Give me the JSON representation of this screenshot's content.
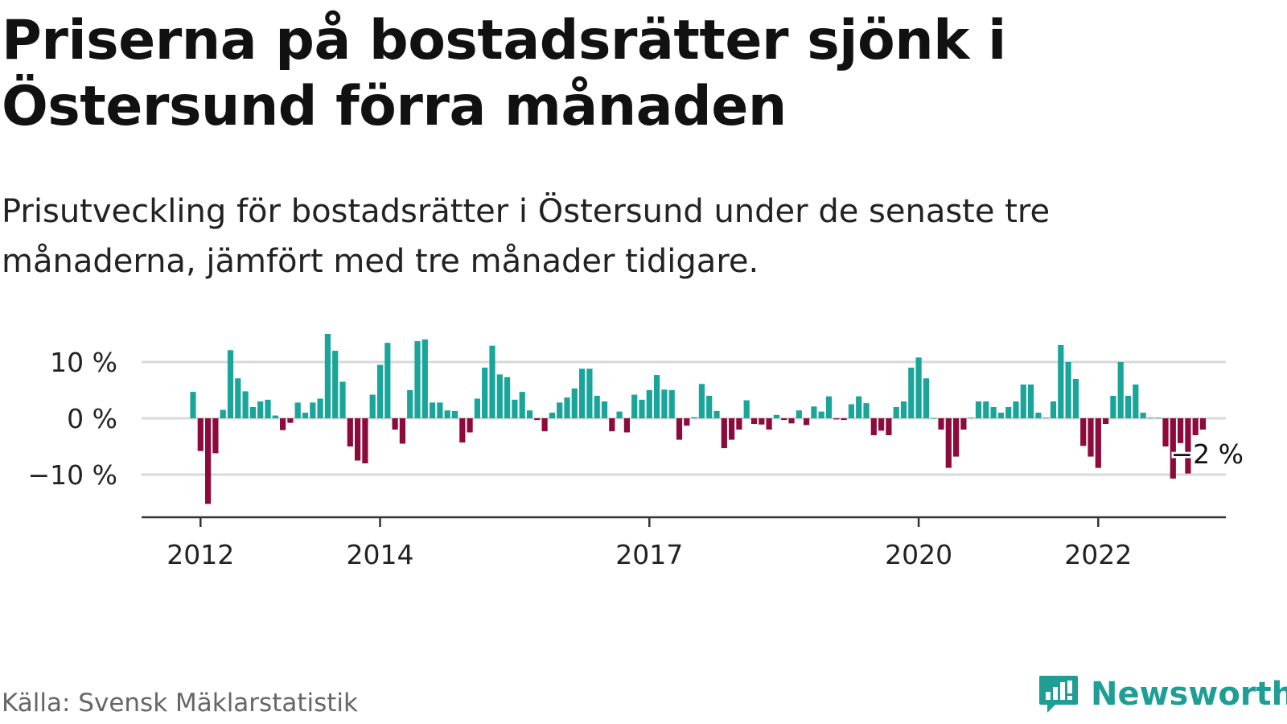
{
  "title": "Priserna på bostadsrätter sjönk i Östersund förra månaden",
  "subtitle": "Prisutveckling för bostadsrätter i Östersund under de senaste tre månaderna, jämfört med tre månader tidigare.",
  "source": "Källa: Svensk Mäklarstatistik",
  "brand": "Newsworthy",
  "colors": {
    "positive": "#1aa59a",
    "negative": "#8d0a3d",
    "grid": "#d9d9d9",
    "axis": "#333333",
    "brand": "#1e9e95"
  },
  "chart_data": {
    "type": "bar",
    "y_unit": "%",
    "ylim": [
      -18,
      15.5
    ],
    "y_ticks": [
      {
        "value": 10,
        "label": "10 %"
      },
      {
        "value": 0,
        "label": "0 %"
      },
      {
        "value": -10,
        "label": "−10 %"
      }
    ],
    "x_ticks": [
      {
        "month": "2012-01",
        "label": "2012"
      },
      {
        "month": "2014-01",
        "label": "2014"
      },
      {
        "month": "2017-01",
        "label": "2017"
      },
      {
        "month": "2020-01",
        "label": "2020"
      },
      {
        "month": "2022-01",
        "label": "2022"
      }
    ],
    "start_month": "2011-12",
    "values": [
      4.7,
      -5.8,
      -15.2,
      -6.2,
      1.5,
      12.1,
      7.1,
      4.8,
      2.0,
      3.0,
      3.3,
      0.5,
      -2.1,
      -0.8,
      2.8,
      1.0,
      2.8,
      3.5,
      15.0,
      12.0,
      6.5,
      -5.0,
      -7.5,
      -8.0,
      4.2,
      9.5,
      13.4,
      -2.0,
      -4.5,
      5.0,
      13.7,
      14.0,
      2.8,
      2.8,
      1.4,
      1.3,
      -4.3,
      -2.5,
      3.5,
      9.0,
      12.9,
      7.8,
      7.3,
      3.3,
      4.7,
      1.4,
      -0.3,
      -2.3,
      1.0,
      2.8,
      3.7,
      5.3,
      8.8,
      8.8,
      4.0,
      3.0,
      -2.3,
      1.2,
      -2.5,
      4.2,
      3.3,
      5.0,
      7.7,
      5.1,
      5.0,
      -3.8,
      -1.3,
      0.2,
      6.1,
      4.0,
      1.3,
      -5.3,
      -3.8,
      -2.0,
      3.2,
      -1.0,
      -1.1,
      -2.0,
      0.6,
      -0.3,
      -0.9,
      1.4,
      -1.2,
      2.1,
      1.2,
      3.9,
      -0.2,
      -0.3,
      2.5,
      3.9,
      2.7,
      -3.0,
      -2.2,
      -3.0,
      2.0,
      3.0,
      9.0,
      10.8,
      7.1,
      0.0,
      -2.0,
      -8.8,
      -6.8,
      -2.0,
      0.1,
      3.0,
      3.0,
      2.0,
      1.0,
      2.0,
      3.0,
      6.0,
      6.0,
      1.0,
      0.1,
      3.0,
      13.0,
      10.0,
      7.0,
      -4.9,
      -6.8,
      -8.8,
      -1.0,
      4.0,
      10.0,
      4.0,
      6.0,
      1.0,
      0.1,
      0.1,
      -5.0,
      -10.7,
      -4.4,
      -9.8,
      -3.0,
      -2.0
    ]
  },
  "end_label": "−2 %"
}
